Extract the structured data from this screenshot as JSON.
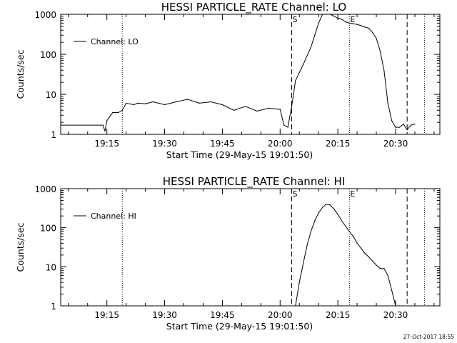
{
  "timestamp": "27-Oct-2017 18:55",
  "chart_data": [
    {
      "type": "line",
      "title": "HESSI PARTICLE_RATE Channel: LO",
      "xlabel": "Start Time (29-May-15 19:01:50)",
      "ylabel": "Counts/sec",
      "yscale": "log",
      "xlim": [
        "19:03:00",
        "20:41:30"
      ],
      "ylim": [
        1,
        1000
      ],
      "x_ticks": [
        "19:15",
        "19:30",
        "19:45",
        "20:00",
        "20:15",
        "20:30"
      ],
      "y_ticks": [
        "1",
        "10",
        "100",
        "1000"
      ],
      "legend": "top-left",
      "series": [
        {
          "name": "Channel: LO",
          "color": "#000000",
          "x": [
            "19:03",
            "19:14",
            "19:14:30",
            "19:15",
            "19:16",
            "19:16:30",
            "19:18",
            "19:19",
            "19:20",
            "19:22",
            "19:23",
            "19:25",
            "19:27",
            "19:30",
            "19:33",
            "19:36",
            "19:39",
            "19:42",
            "19:45",
            "19:48",
            "19:51",
            "19:54",
            "19:57",
            "20:00",
            "20:01",
            "20:02",
            "20:03",
            "20:04",
            "20:06",
            "20:08",
            "20:09",
            "20:10",
            "20:11",
            "20:12",
            "20:13",
            "20:14",
            "20:15",
            "20:16",
            "20:17",
            "20:18",
            "20:19",
            "20:20",
            "20:21",
            "20:22",
            "20:23",
            "20:24",
            "20:25",
            "20:26",
            "20:27",
            "20:28",
            "20:29",
            "20:30",
            "20:31",
            "20:32",
            "20:33",
            "20:34",
            "20:35"
          ],
          "values": [
            1.7,
            1.7,
            1.2,
            2.2,
            3,
            3.5,
            3.5,
            4,
            6,
            5.5,
            6,
            5.8,
            6.5,
            5.5,
            6.5,
            7.5,
            6,
            6.5,
            5.5,
            4,
            5,
            3.8,
            4.5,
            4.2,
            1.7,
            1.5,
            5,
            22,
            55,
            150,
            300,
            600,
            1000,
            1050,
            1000,
            900,
            800,
            750,
            650,
            600,
            580,
            560,
            520,
            480,
            450,
            350,
            250,
            120,
            40,
            6,
            2.2,
            1.5,
            1.5,
            1.8,
            1.3,
            1.7,
            1.8
          ]
        }
      ],
      "annotations": [
        "S",
        "E"
      ],
      "vlines_dotted": [
        "19:19:00",
        "20:18:00",
        "20:37:30"
      ],
      "vlines_dashed": [
        "20:03:00",
        "20:33:00"
      ]
    },
    {
      "type": "line",
      "title": "HESSI PARTICLE_RATE Channel: HI",
      "xlabel": "Start Time (29-May-15 19:01:50)",
      "ylabel": "Counts/sec",
      "yscale": "log",
      "xlim": [
        "19:03:00",
        "20:41:30"
      ],
      "ylim": [
        1,
        1000
      ],
      "x_ticks": [
        "19:15",
        "19:30",
        "19:45",
        "20:00",
        "20:15",
        "20:30"
      ],
      "y_ticks": [
        "1",
        "10",
        "100",
        "1000"
      ],
      "legend": "top-left",
      "series": [
        {
          "name": "Channel: HI",
          "color": "#000000",
          "x": [
            "20:04",
            "20:05",
            "20:06",
            "20:07",
            "20:08",
            "20:09",
            "20:10",
            "20:11",
            "20:12",
            "20:13",
            "20:14",
            "20:15",
            "20:16",
            "20:17",
            "20:18",
            "20:19",
            "20:20",
            "20:21",
            "20:22",
            "20:23",
            "20:24",
            "20:25",
            "20:26",
            "20:27",
            "20:28",
            "20:29",
            "20:30"
          ],
          "values": [
            1,
            4,
            12,
            35,
            80,
            150,
            240,
            330,
            400,
            380,
            300,
            220,
            150,
            110,
            80,
            60,
            40,
            30,
            22,
            18,
            14,
            11,
            9,
            9,
            6,
            2.5,
            1
          ]
        }
      ],
      "annotations": [
        "S",
        "E"
      ],
      "vlines_dotted": [
        "19:19:00",
        "20:18:00",
        "20:37:30"
      ],
      "vlines_dashed": [
        "20:03:00",
        "20:33:00"
      ]
    }
  ]
}
